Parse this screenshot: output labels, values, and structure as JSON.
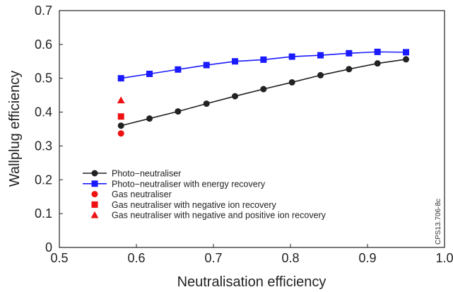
{
  "chart_data": {
    "type": "line",
    "xlabel": "Neutralisation efficiency",
    "ylabel": "Wallplug efficiency",
    "xlim": [
      0.5,
      1.0
    ],
    "ylim": [
      0,
      0.7
    ],
    "x_ticks": [
      "0.5",
      "0.6",
      "0.7",
      "0.8",
      "0.9",
      "1.0"
    ],
    "y_ticks": [
      "0",
      "0.1",
      "0.2",
      "0.3",
      "0.4",
      "0.5",
      "0.6",
      "0.7"
    ],
    "grid": false,
    "legend_position": "bottom-left",
    "side_label": "CPS13.706-8c",
    "series": [
      {
        "name": "Photo−neutraliser",
        "color": "#222222",
        "marker": "circle",
        "x": [
          0.58,
          0.617,
          0.654,
          0.691,
          0.728,
          0.765,
          0.802,
          0.839,
          0.876,
          0.913,
          0.95
        ],
        "y": [
          0.36,
          0.381,
          0.402,
          0.425,
          0.447,
          0.468,
          0.488,
          0.509,
          0.527,
          0.544,
          0.556
        ]
      },
      {
        "name": "Photo−neutraliser with energy recovery",
        "color": "#1a1aff",
        "marker": "square",
        "x": [
          0.58,
          0.617,
          0.654,
          0.691,
          0.728,
          0.765,
          0.802,
          0.839,
          0.876,
          0.913,
          0.95
        ],
        "y": [
          0.5,
          0.513,
          0.526,
          0.539,
          0.55,
          0.555,
          0.564,
          0.568,
          0.574,
          0.578,
          0.577
        ]
      },
      {
        "name": "Gas neutraliser",
        "color": "#ee1111",
        "marker": "circle",
        "x": [
          0.58
        ],
        "y": [
          0.337
        ]
      },
      {
        "name": "Gas neutraliser with negative ion recovery",
        "color": "#ee1111",
        "marker": "square",
        "x": [
          0.58
        ],
        "y": [
          0.387
        ]
      },
      {
        "name": "Gas neutraliser with negative and positive ion recovery",
        "color": "#ee1111",
        "marker": "triangle",
        "x": [
          0.58
        ],
        "y": [
          0.435
        ]
      }
    ]
  }
}
